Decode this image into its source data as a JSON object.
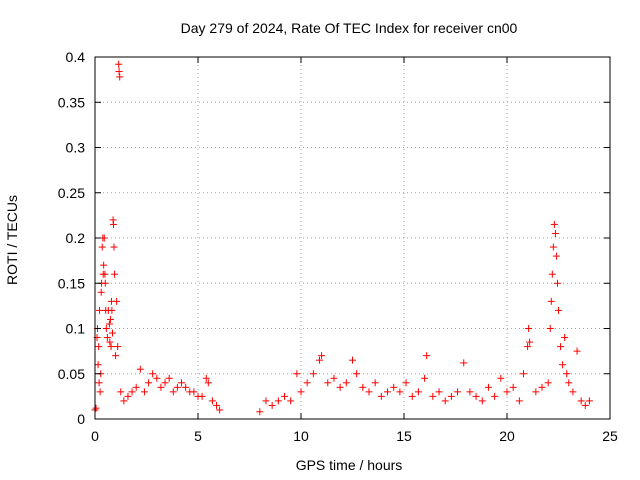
{
  "chart_data": {
    "type": "scatter",
    "title": "Day 279 of 2024, Rate Of TEC Index for receiver cn00",
    "xlabel": "GPS time / hours",
    "ylabel": "ROTI / TECUs",
    "xlim": [
      0,
      25
    ],
    "ylim": [
      0,
      0.4
    ],
    "xticks": [
      0,
      5,
      10,
      15,
      20,
      25
    ],
    "xtick_labels": [
      "0",
      "5",
      "10",
      "15",
      "20",
      "25"
    ],
    "yticks": [
      0,
      0.05,
      0.1,
      0.15,
      0.2,
      0.25,
      0.3,
      0.35,
      0.4
    ],
    "ytick_labels": [
      "0",
      "0.05",
      "0.1",
      "0.15",
      "0.2",
      "0.25",
      "0.3",
      "0.35",
      "0.4"
    ],
    "grid": true,
    "marker": "+",
    "color": "#ff0000",
    "data_gap_hours": [
      6.1,
      8.0
    ],
    "series": [
      {
        "name": "ROTI",
        "points": [
          [
            0.0,
            0.01
          ],
          [
            0.05,
            0.012
          ],
          [
            0.1,
            0.09
          ],
          [
            0.12,
            0.1
          ],
          [
            0.15,
            0.06
          ],
          [
            0.18,
            0.08
          ],
          [
            0.2,
            0.04
          ],
          [
            0.22,
            0.12
          ],
          [
            0.25,
            0.03
          ],
          [
            0.28,
            0.05
          ],
          [
            0.3,
            0.14
          ],
          [
            0.32,
            0.15
          ],
          [
            0.35,
            0.19
          ],
          [
            0.38,
            0.2
          ],
          [
            0.4,
            0.16
          ],
          [
            0.42,
            0.17
          ],
          [
            0.45,
            0.2
          ],
          [
            0.48,
            0.16
          ],
          [
            0.5,
            0.15
          ],
          [
            0.52,
            0.12
          ],
          [
            0.55,
            0.1
          ],
          [
            0.6,
            0.09
          ],
          [
            0.65,
            0.12
          ],
          [
            0.7,
            0.105
          ],
          [
            0.72,
            0.085
          ],
          [
            0.75,
            0.11
          ],
          [
            0.78,
            0.08
          ],
          [
            0.8,
            0.13
          ],
          [
            0.82,
            0.12
          ],
          [
            0.85,
            0.095
          ],
          [
            0.88,
            0.22
          ],
          [
            0.9,
            0.215
          ],
          [
            0.92,
            0.19
          ],
          [
            0.95,
            0.16
          ],
          [
            1.0,
            0.07
          ],
          [
            1.05,
            0.13
          ],
          [
            1.1,
            0.08
          ],
          [
            1.15,
            0.392
          ],
          [
            1.17,
            0.384
          ],
          [
            1.2,
            0.378
          ],
          [
            1.25,
            0.03
          ],
          [
            1.4,
            0.02
          ],
          [
            1.6,
            0.025
          ],
          [
            1.8,
            0.03
          ],
          [
            2.0,
            0.035
          ],
          [
            2.2,
            0.055
          ],
          [
            2.4,
            0.03
          ],
          [
            2.6,
            0.04
          ],
          [
            2.8,
            0.05
          ],
          [
            3.0,
            0.045
          ],
          [
            3.2,
            0.035
          ],
          [
            3.4,
            0.04
          ],
          [
            3.6,
            0.045
          ],
          [
            3.8,
            0.03
          ],
          [
            4.0,
            0.035
          ],
          [
            4.2,
            0.04
          ],
          [
            4.4,
            0.035
          ],
          [
            4.6,
            0.03
          ],
          [
            4.8,
            0.03
          ],
          [
            5.0,
            0.025
          ],
          [
            5.2,
            0.025
          ],
          [
            5.4,
            0.045
          ],
          [
            5.5,
            0.04
          ],
          [
            5.7,
            0.02
          ],
          [
            5.9,
            0.015
          ],
          [
            6.05,
            0.01
          ],
          [
            8.0,
            0.008
          ],
          [
            8.3,
            0.02
          ],
          [
            8.6,
            0.015
          ],
          [
            8.9,
            0.02
          ],
          [
            9.2,
            0.025
          ],
          [
            9.5,
            0.02
          ],
          [
            9.8,
            0.05
          ],
          [
            10.0,
            0.03
          ],
          [
            10.3,
            0.04
          ],
          [
            10.6,
            0.05
          ],
          [
            10.9,
            0.065
          ],
          [
            11.0,
            0.07
          ],
          [
            11.3,
            0.04
          ],
          [
            11.6,
            0.045
          ],
          [
            11.9,
            0.035
          ],
          [
            12.2,
            0.04
          ],
          [
            12.5,
            0.065
          ],
          [
            12.7,
            0.05
          ],
          [
            13.0,
            0.035
          ],
          [
            13.3,
            0.03
          ],
          [
            13.6,
            0.04
          ],
          [
            13.9,
            0.025
          ],
          [
            14.2,
            0.03
          ],
          [
            14.5,
            0.035
          ],
          [
            14.8,
            0.03
          ],
          [
            15.1,
            0.04
          ],
          [
            15.4,
            0.025
          ],
          [
            15.7,
            0.03
          ],
          [
            16.0,
            0.045
          ],
          [
            16.1,
            0.07
          ],
          [
            16.4,
            0.025
          ],
          [
            16.7,
            0.03
          ],
          [
            17.0,
            0.02
          ],
          [
            17.3,
            0.025
          ],
          [
            17.6,
            0.03
          ],
          [
            17.9,
            0.062
          ],
          [
            18.2,
            0.03
          ],
          [
            18.5,
            0.025
          ],
          [
            18.8,
            0.02
          ],
          [
            19.1,
            0.035
          ],
          [
            19.4,
            0.025
          ],
          [
            19.7,
            0.045
          ],
          [
            20.0,
            0.03
          ],
          [
            20.3,
            0.035
          ],
          [
            20.6,
            0.02
          ],
          [
            20.8,
            0.05
          ],
          [
            21.0,
            0.08
          ],
          [
            21.05,
            0.1
          ],
          [
            21.1,
            0.085
          ],
          [
            21.4,
            0.03
          ],
          [
            21.7,
            0.035
          ],
          [
            22.0,
            0.04
          ],
          [
            22.1,
            0.1
          ],
          [
            22.15,
            0.13
          ],
          [
            22.2,
            0.16
          ],
          [
            22.25,
            0.19
          ],
          [
            22.3,
            0.215
          ],
          [
            22.35,
            0.205
          ],
          [
            22.4,
            0.18
          ],
          [
            22.45,
            0.15
          ],
          [
            22.5,
            0.12
          ],
          [
            22.6,
            0.08
          ],
          [
            22.7,
            0.06
          ],
          [
            22.8,
            0.09
          ],
          [
            22.9,
            0.05
          ],
          [
            23.0,
            0.04
          ],
          [
            23.2,
            0.03
          ],
          [
            23.4,
            0.075
          ],
          [
            23.6,
            0.02
          ],
          [
            23.8,
            0.015
          ],
          [
            24.0,
            0.02
          ]
        ]
      }
    ]
  }
}
